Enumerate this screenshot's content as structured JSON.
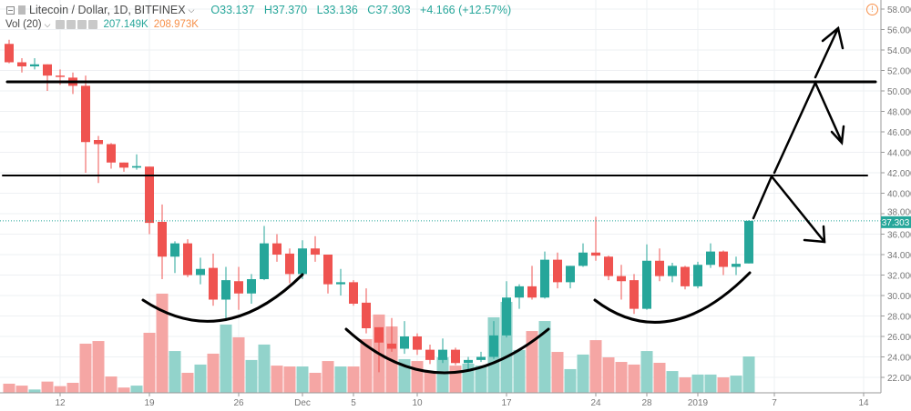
{
  "header": {
    "symbol": "Litecoin / Dollar, 1D, BITFINEX",
    "open": "O33.137",
    "high": "H37.370",
    "low": "L33.136",
    "close": "C37.303",
    "change": "+4.166 (+12.57%)",
    "volume_label": "Vol (20)",
    "volume_value": "207.149K",
    "volume_ma": "208.973K",
    "warning_icon": "!"
  },
  "colors": {
    "up": "#26a69a",
    "down": "#ef5350",
    "up_volume": "#92d3cb",
    "down_volume": "#f5a6a4",
    "volume_ma": "#f7904a"
  },
  "chart_data": {
    "type": "candlestick",
    "title": "Litecoin / Dollar, 1D, BITFINEX",
    "ylim": [
      20.5,
      58.8
    ],
    "y_ticks": [
      "58.000",
      "56.000",
      "54.000",
      "52.000",
      "50.000",
      "48.000",
      "46.000",
      "44.000",
      "42.000",
      "40.000",
      "38.000",
      "36.000",
      "34.000",
      "32.000",
      "30.000",
      "28.000",
      "26.000",
      "24.000",
      "22.000"
    ],
    "x_ticks": [
      {
        "label": "12",
        "date": "2018-11-12"
      },
      {
        "label": "19",
        "date": "2018-11-19"
      },
      {
        "label": "26",
        "date": "2018-11-26"
      },
      {
        "label": "Dec",
        "date": "2018-12-01"
      },
      {
        "label": "5",
        "date": "2018-12-05"
      },
      {
        "label": "10",
        "date": "2018-12-10"
      },
      {
        "label": "17",
        "date": "2018-12-17"
      },
      {
        "label": "24",
        "date": "2018-12-24"
      },
      {
        "label": "28",
        "date": "2018-12-28"
      },
      {
        "label": "2019",
        "date": "2019-01-01"
      },
      {
        "label": "7",
        "date": "2019-01-07"
      },
      {
        "label": "14",
        "date": "2019-01-14"
      }
    ],
    "last_price": "37.303",
    "grid": true,
    "columns": [
      "date",
      "open",
      "high",
      "low",
      "close",
      "volume_k"
    ],
    "candles": [
      [
        "2018-11-08",
        54.6,
        55.0,
        52.7,
        52.8,
        52
      ],
      [
        "2018-11-09",
        52.8,
        53.2,
        51.8,
        52.4,
        41
      ],
      [
        "2018-11-10",
        52.4,
        53.2,
        52.1,
        52.6,
        19
      ],
      [
        "2018-11-11",
        52.6,
        52.6,
        50.0,
        51.5,
        64
      ],
      [
        "2018-11-12",
        51.5,
        52.1,
        50.6,
        51.4,
        38
      ],
      [
        "2018-11-13",
        51.3,
        51.8,
        49.7,
        50.5,
        57
      ],
      [
        "2018-11-14",
        50.5,
        51.5,
        42.0,
        45.0,
        280
      ],
      [
        "2018-11-15",
        45.2,
        45.6,
        41.0,
        44.8,
        295
      ],
      [
        "2018-11-16",
        44.8,
        44.9,
        42.4,
        43.0,
        93
      ],
      [
        "2018-11-17",
        43.0,
        43.0,
        42.1,
        42.5,
        30
      ],
      [
        "2018-11-18",
        42.5,
        43.8,
        42.3,
        42.65,
        41
      ],
      [
        "2018-11-19",
        42.6,
        42.6,
        36.0,
        37.1,
        342
      ],
      [
        "2018-11-20",
        37.2,
        38.9,
        31.6,
        33.8,
        565
      ],
      [
        "2018-11-21",
        33.8,
        35.3,
        32.2,
        35.1,
        238
      ],
      [
        "2018-11-22",
        35.1,
        35.5,
        31.8,
        32.0,
        114
      ],
      [
        "2018-11-23",
        32.0,
        33.7,
        31.1,
        32.6,
        161
      ],
      [
        "2018-11-24",
        32.7,
        34.1,
        29.0,
        29.6,
        223
      ],
      [
        "2018-11-25",
        29.6,
        32.8,
        27.5,
        31.5,
        389
      ],
      [
        "2018-11-26",
        31.4,
        32.8,
        28.6,
        30.2,
        316
      ],
      [
        "2018-11-27",
        30.2,
        32.1,
        29.2,
        31.6,
        187
      ],
      [
        "2018-11-28",
        31.6,
        36.8,
        31.5,
        35.1,
        275
      ],
      [
        "2018-11-29",
        35.1,
        36.0,
        33.3,
        34.0,
        155
      ],
      [
        "2018-11-30",
        34.1,
        34.6,
        31.2,
        32.1,
        150
      ],
      [
        "2018-12-01",
        32.1,
        35.4,
        31.6,
        34.6,
        150
      ],
      [
        "2018-12-02",
        34.6,
        35.8,
        33.3,
        34.0,
        114
      ],
      [
        "2018-12-03",
        34.0,
        34.0,
        30.2,
        31.1,
        181
      ],
      [
        "2018-12-04",
        31.1,
        32.6,
        30.0,
        31.3,
        150
      ],
      [
        "2018-12-05",
        31.3,
        31.5,
        29.0,
        29.2,
        150
      ],
      [
        "2018-12-06",
        29.3,
        30.7,
        26.3,
        26.8,
        306
      ],
      [
        "2018-12-07",
        26.9,
        26.9,
        22.5,
        25.4,
        446
      ],
      [
        "2018-12-08",
        25.3,
        27.8,
        24.5,
        24.8,
        378
      ],
      [
        "2018-12-09",
        24.8,
        27.5,
        24.3,
        26.0,
        192
      ],
      [
        "2018-12-10",
        26.0,
        26.3,
        24.2,
        24.7,
        181
      ],
      [
        "2018-12-11",
        24.7,
        25.2,
        23.3,
        23.7,
        119
      ],
      [
        "2018-12-12",
        23.7,
        25.8,
        23.4,
        24.7,
        202
      ],
      [
        "2018-12-13",
        24.7,
        24.9,
        23.2,
        23.4,
        155
      ],
      [
        "2018-12-14",
        23.4,
        24.0,
        22.7,
        23.7,
        166
      ],
      [
        "2018-12-15",
        23.7,
        24.5,
        23.5,
        24.0,
        155
      ],
      [
        "2018-12-16",
        24.0,
        27.5,
        23.8,
        26.1,
        430
      ],
      [
        "2018-12-17",
        26.1,
        31.4,
        25.9,
        29.8,
        518
      ],
      [
        "2018-12-18",
        29.8,
        31.1,
        28.7,
        30.9,
        244
      ],
      [
        "2018-12-19",
        30.9,
        32.9,
        29.6,
        29.8,
        352
      ],
      [
        "2018-12-20",
        29.8,
        34.3,
        29.7,
        33.5,
        409
      ],
      [
        "2018-12-21",
        33.5,
        34.2,
        30.7,
        31.3,
        233
      ],
      [
        "2018-12-22",
        31.3,
        32.9,
        30.7,
        32.9,
        135
      ],
      [
        "2018-12-23",
        32.9,
        35.1,
        32.8,
        34.2,
        218
      ],
      [
        "2018-12-24",
        34.2,
        37.7,
        33.4,
        33.9,
        300
      ],
      [
        "2018-12-25",
        33.8,
        33.9,
        31.5,
        31.9,
        202
      ],
      [
        "2018-12-26",
        31.9,
        33.0,
        29.6,
        31.4,
        176
      ],
      [
        "2018-12-27",
        31.5,
        32.1,
        28.2,
        28.7,
        161
      ],
      [
        "2018-12-28",
        28.7,
        35.0,
        28.6,
        33.4,
        238
      ],
      [
        "2018-12-29",
        33.4,
        34.6,
        31.4,
        31.9,
        171
      ],
      [
        "2018-12-30",
        31.9,
        33.2,
        31.3,
        32.9,
        124
      ],
      [
        "2018-12-31",
        32.8,
        32.9,
        30.6,
        30.9,
        88
      ],
      [
        "2019-01-01",
        30.9,
        33.3,
        30.7,
        33.0,
        104
      ],
      [
        "2019-01-02",
        33.0,
        35.1,
        32.7,
        34.3,
        104
      ],
      [
        "2019-01-03",
        34.3,
        34.4,
        32.0,
        32.8,
        88
      ],
      [
        "2019-01-04",
        32.8,
        33.8,
        32.0,
        33.1,
        98
      ],
      [
        "2019-01-05",
        33.137,
        37.37,
        33.136,
        37.303,
        207.149
      ]
    ]
  }
}
